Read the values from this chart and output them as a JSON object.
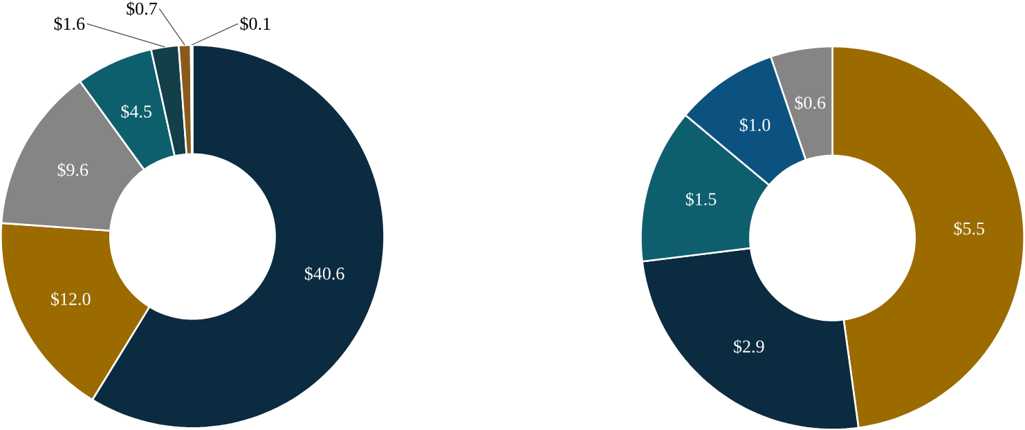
{
  "chart_data": [
    {
      "type": "donut",
      "categories": [
        null,
        null,
        null,
        null,
        null,
        null,
        null
      ],
      "values": [
        40.6,
        12.0,
        9.6,
        4.5,
        1.6,
        0.7,
        0.1
      ],
      "colors": [
        "#0b2b40",
        "#9b6b00",
        "#858585",
        "#0e5f6e",
        "#123f48",
        "#8a5a1c",
        "#2a6a8a"
      ],
      "value_labels": [
        "$40.6",
        "$12.0",
        "$9.6",
        "$4.5",
        "$1.6",
        "$0.7",
        "$0.1"
      ]
    },
    {
      "type": "donut",
      "categories": [
        null,
        null,
        null,
        null,
        null
      ],
      "values": [
        5.5,
        2.9,
        1.5,
        1.0,
        0.6
      ],
      "colors": [
        "#9b6b00",
        "#0b2b40",
        "#0e5f6e",
        "#0c5280",
        "#858585"
      ],
      "value_labels": [
        "$5.5",
        "$2.9",
        "$1.5",
        "$1.0",
        "$0.6"
      ]
    }
  ]
}
